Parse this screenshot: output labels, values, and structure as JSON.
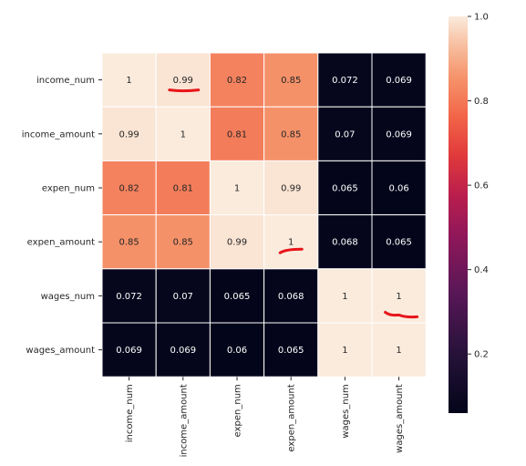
{
  "chart_data": {
    "type": "heatmap",
    "title": "",
    "xlabel": "",
    "ylabel": "",
    "row_labels": [
      "income_num",
      "income_amount",
      "expen_num",
      "expen_amount",
      "wages_num",
      "wages_amount"
    ],
    "col_labels": [
      "income_num",
      "income_amount",
      "expen_num",
      "expen_amount",
      "wages_num",
      "wages_amount"
    ],
    "values": [
      [
        1,
        0.99,
        0.82,
        0.85,
        0.072,
        0.069
      ],
      [
        0.99,
        1,
        0.81,
        0.85,
        0.07,
        0.069
      ],
      [
        0.82,
        0.81,
        1,
        0.99,
        0.065,
        0.06
      ],
      [
        0.85,
        0.85,
        0.99,
        1,
        0.068,
        0.065
      ],
      [
        0.072,
        0.07,
        0.065,
        0.068,
        1,
        1
      ],
      [
        0.069,
        0.069,
        0.06,
        0.065,
        1,
        1
      ]
    ],
    "value_labels": [
      [
        "1",
        "0.99",
        "0.82",
        "0.85",
        "0.072",
        "0.069"
      ],
      [
        "0.99",
        "1",
        "0.81",
        "0.85",
        "0.07",
        "0.069"
      ],
      [
        "0.82",
        "0.81",
        "1",
        "0.99",
        "0.065",
        "0.06"
      ],
      [
        "0.85",
        "0.85",
        "0.99",
        "1",
        "0.068",
        "0.065"
      ],
      [
        "0.072",
        "0.07",
        "0.065",
        "0.068",
        "1",
        "1"
      ],
      [
        "0.069",
        "0.069",
        "0.06",
        "0.065",
        "1",
        "1"
      ]
    ],
    "colorbar": {
      "colormap": "rocket",
      "range": [
        0.06,
        1.0
      ],
      "ticks": [
        0.2,
        0.4,
        0.6,
        0.8,
        1.0
      ],
      "tick_labels": [
        "0.2",
        "0.4",
        "0.6",
        "0.8",
        "1.0"
      ]
    },
    "annotations": [
      {
        "type": "red-underline",
        "row": 0,
        "col": 1,
        "color": "#e8141a"
      },
      {
        "type": "red-underline",
        "row": 3,
        "col": 3,
        "color": "#e8141a"
      },
      {
        "type": "red-underline",
        "row": 4,
        "col": 5,
        "color": "#e8141a"
      }
    ],
    "grid": false,
    "legend": "colorbar-right"
  }
}
